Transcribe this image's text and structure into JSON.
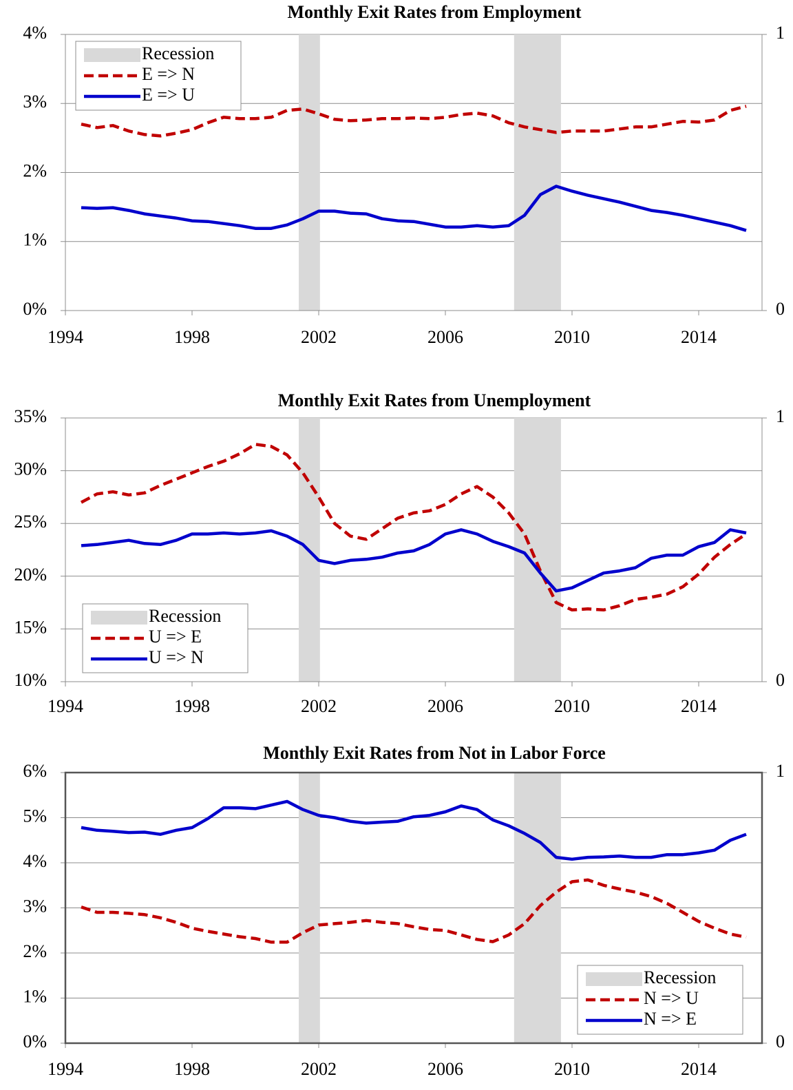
{
  "chart_data": [
    {
      "type": "line",
      "title": "Monthly Exit Rates from Employment",
      "x": [
        1994.5,
        1995,
        1995.5,
        1996,
        1996.5,
        1997,
        1997.5,
        1998,
        1998.5,
        1999,
        1999.5,
        2000,
        2000.5,
        2001,
        2001.5,
        2002,
        2002.5,
        2003,
        2003.5,
        2004,
        2004.5,
        2005,
        2005.5,
        2006,
        2006.5,
        2007,
        2007.5,
        2008,
        2008.5,
        2009,
        2009.5,
        2010,
        2010.5,
        2011,
        2011.5,
        2012,
        2012.5,
        2013,
        2013.5,
        2014,
        2014.5,
        2015,
        2015.5
      ],
      "series": [
        {
          "name": "E => N",
          "color": "#c00000",
          "style": "dashed",
          "values": [
            2.7,
            2.65,
            2.68,
            2.6,
            2.55,
            2.53,
            2.57,
            2.62,
            2.72,
            2.8,
            2.78,
            2.78,
            2.8,
            2.9,
            2.92,
            2.85,
            2.77,
            2.75,
            2.76,
            2.78,
            2.78,
            2.79,
            2.78,
            2.8,
            2.84,
            2.86,
            2.82,
            2.72,
            2.66,
            2.62,
            2.58,
            2.6,
            2.6,
            2.6,
            2.63,
            2.66,
            2.66,
            2.7,
            2.74,
            2.73,
            2.76,
            2.9,
            2.96
          ]
        },
        {
          "name": "E => U",
          "color": "#0000cc",
          "style": "solid",
          "values": [
            1.49,
            1.48,
            1.49,
            1.45,
            1.4,
            1.37,
            1.34,
            1.3,
            1.29,
            1.26,
            1.23,
            1.19,
            1.19,
            1.24,
            1.33,
            1.44,
            1.44,
            1.41,
            1.4,
            1.33,
            1.3,
            1.29,
            1.25,
            1.21,
            1.21,
            1.23,
            1.21,
            1.23,
            1.38,
            1.68,
            1.8,
            1.73,
            1.67,
            1.62,
            1.57,
            1.51,
            1.45,
            1.42,
            1.38,
            1.33,
            1.28,
            1.23,
            1.16
          ]
        }
      ],
      "shading": {
        "name": "Recession",
        "color": "#d9d9d9",
        "ranges": [
          [
            2001.37,
            2002.04
          ],
          [
            2008.17,
            2009.65
          ]
        ]
      },
      "xlim": [
        1994,
        2016
      ],
      "xticks": [
        1994,
        1998,
        2002,
        2006,
        2010,
        2014
      ],
      "ylim": [
        0,
        4
      ],
      "yticks": [
        {
          "value": 0,
          "label": "0%"
        },
        {
          "value": 1,
          "label": "1%"
        },
        {
          "value": 2,
          "label": "2%"
        },
        {
          "value": 3,
          "label": "3%"
        },
        {
          "value": 4,
          "label": "4%"
        }
      ],
      "y2lim": [
        0,
        1
      ],
      "y2ticks": [
        0,
        1
      ],
      "grid": true,
      "legend": "upper left",
      "frame": false
    },
    {
      "type": "line",
      "title": "Monthly Exit Rates from Unemployment",
      "x": [
        1994.5,
        1995,
        1995.5,
        1996,
        1996.5,
        1997,
        1997.5,
        1998,
        1998.5,
        1999,
        1999.5,
        2000,
        2000.5,
        2001,
        2001.5,
        2002,
        2002.5,
        2003,
        2003.5,
        2004,
        2004.5,
        2005,
        2005.5,
        2006,
        2006.5,
        2007,
        2007.5,
        2008,
        2008.5,
        2009,
        2009.5,
        2010,
        2010.5,
        2011,
        2011.5,
        2012,
        2012.5,
        2013,
        2013.5,
        2014,
        2014.5,
        2015,
        2015.5
      ],
      "series": [
        {
          "name": "U => E",
          "color": "#c00000",
          "style": "dashed",
          "values": [
            27,
            27.8,
            28,
            27.7,
            27.9,
            28.6,
            29.2,
            29.8,
            30.4,
            30.9,
            31.6,
            32.5,
            32.3,
            31.5,
            29.8,
            27.5,
            25,
            23.8,
            23.5,
            24.5,
            25.5,
            26,
            26.2,
            26.8,
            27.8,
            28.5,
            27.5,
            26,
            24,
            20.5,
            17.5,
            16.8,
            16.9,
            16.8,
            17.2,
            17.8,
            18,
            18.3,
            19,
            20.2,
            21.8,
            23,
            24
          ]
        },
        {
          "name": "U => N",
          "color": "#0000cc",
          "style": "solid",
          "values": [
            22.9,
            23,
            23.2,
            23.4,
            23.1,
            23,
            23.4,
            24,
            24,
            24.1,
            24,
            24.1,
            24.3,
            23.8,
            23,
            21.5,
            21.2,
            21.5,
            21.6,
            21.8,
            22.2,
            22.4,
            23,
            24,
            24.4,
            24,
            23.3,
            22.8,
            22.2,
            20.3,
            18.6,
            18.9,
            19.6,
            20.3,
            20.5,
            20.8,
            21.7,
            22,
            22,
            22.8,
            23.2,
            24.4,
            24.1
          ]
        }
      ],
      "shading": {
        "name": "Recession",
        "color": "#d9d9d9",
        "ranges": [
          [
            2001.37,
            2002.04
          ],
          [
            2008.17,
            2009.65
          ]
        ]
      },
      "xlim": [
        1994,
        2016
      ],
      "xticks": [
        1994,
        1998,
        2002,
        2006,
        2010,
        2014
      ],
      "ylim": [
        10,
        35
      ],
      "yticks": [
        {
          "value": 10,
          "label": "10%"
        },
        {
          "value": 15,
          "label": "15%"
        },
        {
          "value": 20,
          "label": "20%"
        },
        {
          "value": 25,
          "label": "25%"
        },
        {
          "value": 30,
          "label": "30%"
        },
        {
          "value": 35,
          "label": "35%"
        }
      ],
      "y2lim": [
        0,
        1
      ],
      "y2ticks": [
        0,
        1
      ],
      "grid": true,
      "legend": "lower left",
      "frame": false
    },
    {
      "type": "line",
      "title": "Monthly Exit Rates from Not in Labor Force",
      "x": [
        1994.5,
        1995,
        1995.5,
        1996,
        1996.5,
        1997,
        1997.5,
        1998,
        1998.5,
        1999,
        1999.5,
        2000,
        2000.5,
        2001,
        2001.5,
        2002,
        2002.5,
        2003,
        2003.5,
        2004,
        2004.5,
        2005,
        2005.5,
        2006,
        2006.5,
        2007,
        2007.5,
        2008,
        2008.5,
        2009,
        2009.5,
        2010,
        2010.5,
        2011,
        2011.5,
        2012,
        2012.5,
        2013,
        2013.5,
        2014,
        2014.5,
        2015,
        2015.5
      ],
      "series": [
        {
          "name": "N => U",
          "color": "#c00000",
          "style": "dashed",
          "values": [
            3.02,
            2.9,
            2.9,
            2.88,
            2.85,
            2.78,
            2.68,
            2.55,
            2.48,
            2.42,
            2.36,
            2.32,
            2.24,
            2.24,
            2.45,
            2.62,
            2.65,
            2.68,
            2.72,
            2.68,
            2.65,
            2.58,
            2.52,
            2.5,
            2.4,
            2.3,
            2.25,
            2.4,
            2.65,
            3.05,
            3.35,
            3.58,
            3.62,
            3.5,
            3.42,
            3.35,
            3.25,
            3.1,
            2.9,
            2.7,
            2.55,
            2.42,
            2.35
          ]
        },
        {
          "name": "N => E",
          "color": "#0000cc",
          "style": "solid",
          "values": [
            4.78,
            4.72,
            4.7,
            4.67,
            4.68,
            4.63,
            4.72,
            4.78,
            4.98,
            5.22,
            5.22,
            5.2,
            5.28,
            5.36,
            5.18,
            5.05,
            5,
            4.92,
            4.88,
            4.9,
            4.92,
            5.02,
            5.05,
            5.13,
            5.26,
            5.18,
            4.95,
            4.82,
            4.65,
            4.45,
            4.12,
            4.08,
            4.12,
            4.13,
            4.15,
            4.12,
            4.12,
            4.18,
            4.18,
            4.22,
            4.28,
            4.5,
            4.63
          ]
        }
      ],
      "shading": {
        "name": "Recession",
        "color": "#d9d9d9",
        "ranges": [
          [
            2001.37,
            2002.04
          ],
          [
            2008.17,
            2009.65
          ]
        ]
      },
      "xlim": [
        1994,
        2016
      ],
      "xticks": [
        1994,
        1998,
        2002,
        2006,
        2010,
        2014
      ],
      "ylim": [
        0,
        6
      ],
      "yticks": [
        {
          "value": 0,
          "label": "0%"
        },
        {
          "value": 1,
          "label": "1%"
        },
        {
          "value": 2,
          "label": "2%"
        },
        {
          "value": 3,
          "label": "3%"
        },
        {
          "value": 4,
          "label": "4%"
        },
        {
          "value": 5,
          "label": "5%"
        },
        {
          "value": 6,
          "label": "6%"
        }
      ],
      "y2lim": [
        0,
        1
      ],
      "y2ticks": [
        0,
        1
      ],
      "grid": true,
      "legend": "lower right",
      "frame": true
    }
  ]
}
